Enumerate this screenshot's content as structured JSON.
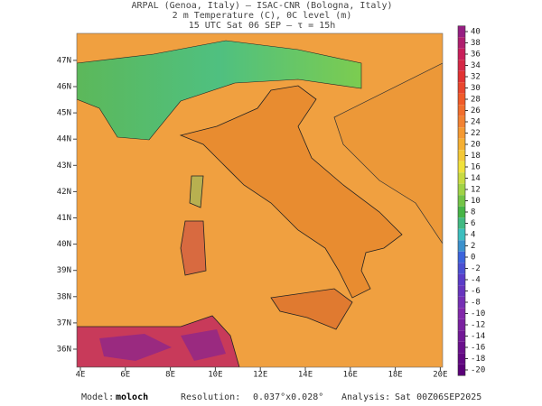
{
  "header": {
    "line1": "ARPAL (Genoa, Italy)  –  ISAC-CNR (Bologna, Italy)",
    "line2": "2 m Temperature (C), 0C level (m)",
    "line3": "15 UTC Sat 06 SEP  –  τ = 15h"
  },
  "lat_ticks": [
    {
      "value": 47,
      "label": "47N"
    },
    {
      "value": 46,
      "label": "46N"
    },
    {
      "value": 45,
      "label": "45N"
    },
    {
      "value": 44,
      "label": "44N"
    },
    {
      "value": 43,
      "label": "43N"
    },
    {
      "value": 42,
      "label": "42N"
    },
    {
      "value": 41,
      "label": "41N"
    },
    {
      "value": 40,
      "label": "40N"
    },
    {
      "value": 39,
      "label": "39N"
    },
    {
      "value": 38,
      "label": "38N"
    },
    {
      "value": 37,
      "label": "37N"
    },
    {
      "value": 36,
      "label": "36N"
    }
  ],
  "lon_ticks": [
    {
      "value": 4,
      "label": "4E"
    },
    {
      "value": 6,
      "label": "6E"
    },
    {
      "value": 8,
      "label": "8E"
    },
    {
      "value": 10,
      "label": "10E"
    },
    {
      "value": 12,
      "label": "12E"
    },
    {
      "value": 14,
      "label": "14E"
    },
    {
      "value": 16,
      "label": "16E"
    },
    {
      "value": 18,
      "label": "18E"
    },
    {
      "value": 20,
      "label": "20E"
    }
  ],
  "colorbar": {
    "ticks": [
      40,
      38,
      36,
      34,
      32,
      30,
      28,
      26,
      24,
      22,
      20,
      18,
      16,
      14,
      12,
      10,
      8,
      6,
      4,
      2,
      0,
      -2,
      -4,
      -6,
      -8,
      -10,
      -12,
      -14,
      -16,
      -18,
      -20
    ]
  },
  "footer": {
    "model_label": "Model:",
    "model": "moloch",
    "resolution_label": "Resolution:",
    "resolution": "0.037°x0.028°",
    "analysis_label": "Analysis:",
    "analysis": "Sat 00Z06SEP2025"
  }
}
